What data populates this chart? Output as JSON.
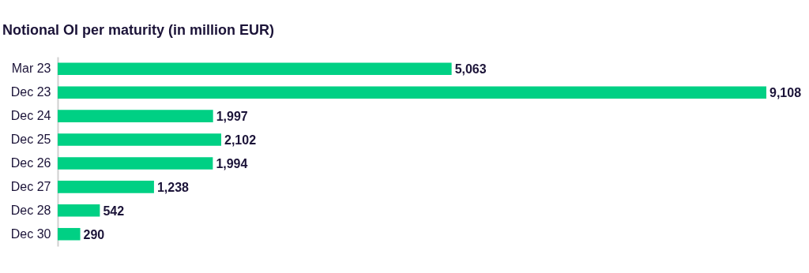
{
  "chart_data": {
    "type": "bar",
    "orientation": "horizontal",
    "title": "Notional OI per maturity (in million EUR)",
    "categories": [
      "Mar 23",
      "Dec 23",
      "Dec 24",
      "Dec 25",
      "Dec 26",
      "Dec 27",
      "Dec 28",
      "Dec 30"
    ],
    "values": [
      5063,
      9108,
      1997,
      2102,
      1994,
      1238,
      542,
      290
    ],
    "value_labels": [
      "5,063",
      "9,108",
      "1,997",
      "2,102",
      "1,994",
      "1,238",
      "542",
      "290"
    ],
    "color": "#00d084"
  }
}
